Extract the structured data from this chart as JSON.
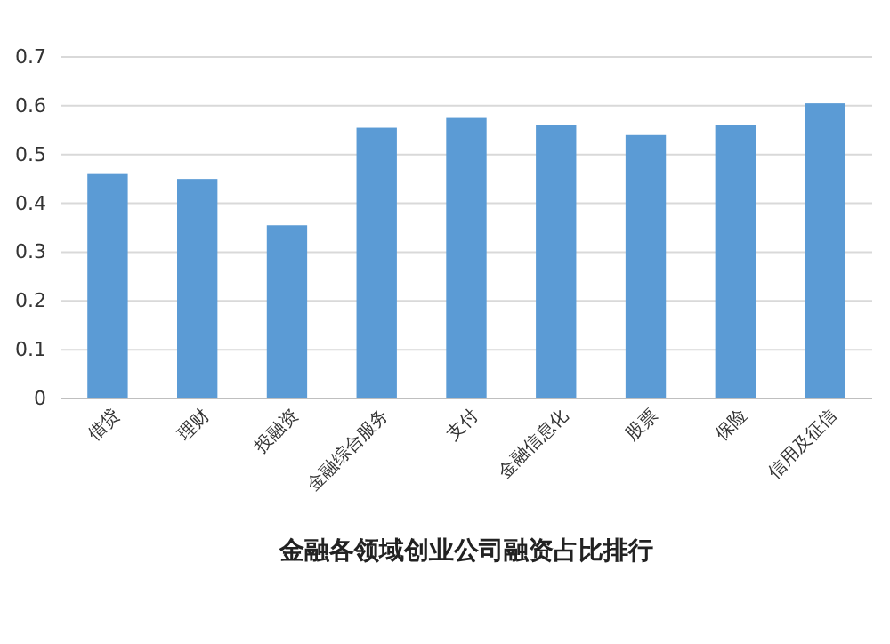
{
  "chart_data": {
    "type": "bar",
    "title": "金融各领域创业公司融资占比排行",
    "categories": [
      "借贷",
      "理财",
      "投融资",
      "金融综合服务",
      "支付",
      "金融信息化",
      "股票",
      "保险",
      "信用及征信"
    ],
    "values": [
      0.46,
      0.45,
      0.355,
      0.555,
      0.575,
      0.56,
      0.54,
      0.56,
      0.605
    ],
    "color": "#5b9bd5",
    "ylim": [
      0,
      0.7
    ],
    "yticks": [
      0,
      0.1,
      0.2,
      0.3,
      0.4,
      0.5,
      0.6,
      0.7
    ],
    "grid": "y"
  }
}
